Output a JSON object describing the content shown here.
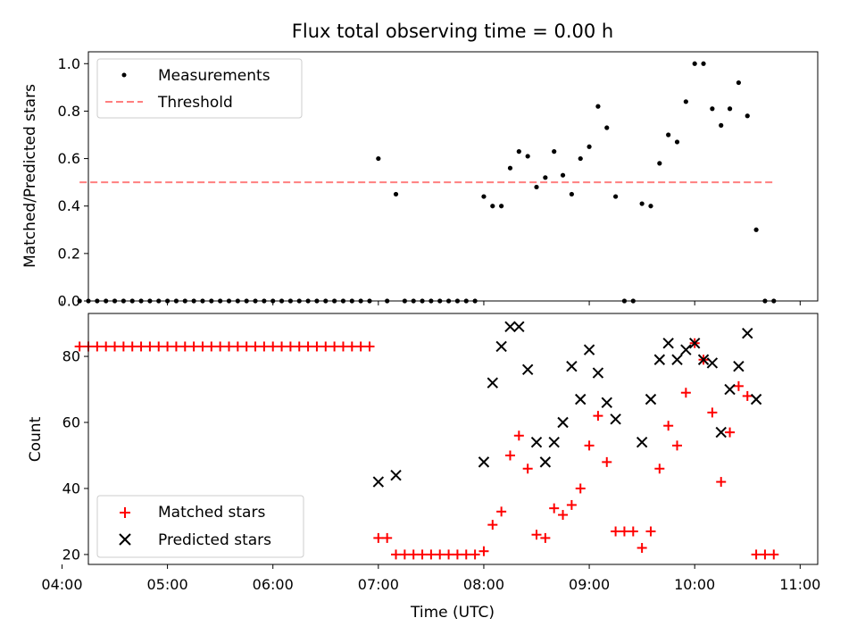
{
  "chart_data": [
    {
      "type": "scatter",
      "title": "Flux total observing time = 0.00 h",
      "xlabel": "",
      "ylabel": "Matched/Predicted stars",
      "ylim": [
        0,
        1.05
      ],
      "yticks": [
        "0.0",
        "0.2",
        "0.4",
        "0.6",
        "0.8",
        "1.0"
      ],
      "xlim": [
        "04:00",
        "11:00"
      ],
      "legend": "upper left",
      "grid": false,
      "threshold": {
        "name": "Threshold",
        "value": 0.5,
        "x_start": "04:10",
        "x_end": "10:45",
        "color": "#ff7f7f"
      },
      "series": [
        {
          "name": "Measurements",
          "color": "#000000",
          "marker": "dot",
          "points": [
            [
              "04:10",
              0
            ],
            [
              "04:15",
              0
            ],
            [
              "04:20",
              0
            ],
            [
              "04:25",
              0
            ],
            [
              "04:30",
              0
            ],
            [
              "04:35",
              0
            ],
            [
              "04:40",
              0
            ],
            [
              "04:45",
              0
            ],
            [
              "04:50",
              0
            ],
            [
              "04:55",
              0
            ],
            [
              "05:00",
              0
            ],
            [
              "05:05",
              0
            ],
            [
              "05:10",
              0
            ],
            [
              "05:15",
              0
            ],
            [
              "05:20",
              0
            ],
            [
              "05:25",
              0
            ],
            [
              "05:30",
              0
            ],
            [
              "05:35",
              0
            ],
            [
              "05:40",
              0
            ],
            [
              "05:45",
              0
            ],
            [
              "05:50",
              0
            ],
            [
              "05:55",
              0
            ],
            [
              "06:00",
              0
            ],
            [
              "06:05",
              0
            ],
            [
              "06:10",
              0
            ],
            [
              "06:15",
              0
            ],
            [
              "06:20",
              0
            ],
            [
              "06:25",
              0
            ],
            [
              "06:30",
              0
            ],
            [
              "06:35",
              0
            ],
            [
              "06:40",
              0
            ],
            [
              "06:45",
              0
            ],
            [
              "06:50",
              0
            ],
            [
              "06:55",
              0
            ],
            [
              "07:00",
              0.6
            ],
            [
              "07:05",
              0
            ],
            [
              "07:10",
              0.45
            ],
            [
              "07:15",
              0
            ],
            [
              "07:20",
              0
            ],
            [
              "07:25",
              0
            ],
            [
              "07:30",
              0
            ],
            [
              "07:35",
              0
            ],
            [
              "07:40",
              0
            ],
            [
              "07:45",
              0
            ],
            [
              "07:50",
              0
            ],
            [
              "07:55",
              0
            ],
            [
              "08:00",
              0.44
            ],
            [
              "08:05",
              0.4
            ],
            [
              "08:10",
              0.4
            ],
            [
              "08:15",
              0.56
            ],
            [
              "08:20",
              0.63
            ],
            [
              "08:25",
              0.61
            ],
            [
              "08:30",
              0.48
            ],
            [
              "08:35",
              0.52
            ],
            [
              "08:40",
              0.63
            ],
            [
              "08:45",
              0.53
            ],
            [
              "08:50",
              0.45
            ],
            [
              "08:55",
              0.6
            ],
            [
              "09:00",
              0.65
            ],
            [
              "09:05",
              0.82
            ],
            [
              "09:10",
              0.73
            ],
            [
              "09:15",
              0.44
            ],
            [
              "09:20",
              0
            ],
            [
              "09:25",
              0
            ],
            [
              "09:30",
              0.41
            ],
            [
              "09:35",
              0.4
            ],
            [
              "09:40",
              0.58
            ],
            [
              "09:45",
              0.7
            ],
            [
              "09:50",
              0.67
            ],
            [
              "09:55",
              0.84
            ],
            [
              "10:00",
              1.0
            ],
            [
              "10:05",
              1.0
            ],
            [
              "10:10",
              0.81
            ],
            [
              "10:15",
              0.74
            ],
            [
              "10:20",
              0.81
            ],
            [
              "10:25",
              0.92
            ],
            [
              "10:30",
              0.78
            ],
            [
              "10:35",
              0.3
            ],
            [
              "10:40",
              0
            ],
            [
              "10:45",
              0
            ]
          ]
        }
      ]
    },
    {
      "type": "scatter",
      "title": "",
      "xlabel": "Time (UTC)",
      "ylabel": "Count",
      "ylim": [
        17,
        93
      ],
      "yticks": [
        "20",
        "40",
        "60",
        "80"
      ],
      "xlim": [
        "04:00",
        "11:00"
      ],
      "xticks": [
        "04:00",
        "05:00",
        "06:00",
        "07:00",
        "08:00",
        "09:00",
        "10:00",
        "11:00"
      ],
      "legend": "lower left",
      "grid": false,
      "series": [
        {
          "name": "Matched stars",
          "color": "#ff0000",
          "marker": "plus",
          "points": [
            [
              "04:10",
              83
            ],
            [
              "04:15",
              83
            ],
            [
              "04:20",
              83
            ],
            [
              "04:25",
              83
            ],
            [
              "04:30",
              83
            ],
            [
              "04:35",
              83
            ],
            [
              "04:40",
              83
            ],
            [
              "04:45",
              83
            ],
            [
              "04:50",
              83
            ],
            [
              "04:55",
              83
            ],
            [
              "05:00",
              83
            ],
            [
              "05:05",
              83
            ],
            [
              "05:10",
              83
            ],
            [
              "05:15",
              83
            ],
            [
              "05:20",
              83
            ],
            [
              "05:25",
              83
            ],
            [
              "05:30",
              83
            ],
            [
              "05:35",
              83
            ],
            [
              "05:40",
              83
            ],
            [
              "05:45",
              83
            ],
            [
              "05:50",
              83
            ],
            [
              "05:55",
              83
            ],
            [
              "06:00",
              83
            ],
            [
              "06:05",
              83
            ],
            [
              "06:10",
              83
            ],
            [
              "06:15",
              83
            ],
            [
              "06:20",
              83
            ],
            [
              "06:25",
              83
            ],
            [
              "06:30",
              83
            ],
            [
              "06:35",
              83
            ],
            [
              "06:40",
              83
            ],
            [
              "06:45",
              83
            ],
            [
              "06:50",
              83
            ],
            [
              "06:55",
              83
            ],
            [
              "07:00",
              25
            ],
            [
              "07:05",
              25
            ],
            [
              "07:10",
              20
            ],
            [
              "07:15",
              20
            ],
            [
              "07:20",
              20
            ],
            [
              "07:25",
              20
            ],
            [
              "07:30",
              20
            ],
            [
              "07:35",
              20
            ],
            [
              "07:40",
              20
            ],
            [
              "07:45",
              20
            ],
            [
              "07:50",
              20
            ],
            [
              "07:55",
              20
            ],
            [
              "08:00",
              21
            ],
            [
              "08:05",
              29
            ],
            [
              "08:10",
              33
            ],
            [
              "08:15",
              50
            ],
            [
              "08:20",
              56
            ],
            [
              "08:25",
              46
            ],
            [
              "08:30",
              26
            ],
            [
              "08:35",
              25
            ],
            [
              "08:40",
              34
            ],
            [
              "08:45",
              32
            ],
            [
              "08:50",
              35
            ],
            [
              "08:55",
              40
            ],
            [
              "09:00",
              53
            ],
            [
              "09:05",
              62
            ],
            [
              "09:10",
              48
            ],
            [
              "09:15",
              27
            ],
            [
              "09:20",
              27
            ],
            [
              "09:25",
              27
            ],
            [
              "09:30",
              22
            ],
            [
              "09:35",
              27
            ],
            [
              "09:40",
              46
            ],
            [
              "09:45",
              59
            ],
            [
              "09:50",
              53
            ],
            [
              "09:55",
              69
            ],
            [
              "10:00",
              84
            ],
            [
              "10:05",
              79
            ],
            [
              "10:10",
              63
            ],
            [
              "10:15",
              42
            ],
            [
              "10:20",
              57
            ],
            [
              "10:25",
              71
            ],
            [
              "10:30",
              68
            ],
            [
              "10:35",
              20
            ],
            [
              "10:40",
              20
            ],
            [
              "10:45",
              20
            ]
          ]
        },
        {
          "name": "Predicted stars",
          "color": "#000000",
          "marker": "x",
          "points": [
            [
              "07:00",
              42
            ],
            [
              "07:10",
              44
            ],
            [
              "08:00",
              48
            ],
            [
              "08:05",
              72
            ],
            [
              "08:10",
              83
            ],
            [
              "08:15",
              89
            ],
            [
              "08:20",
              89
            ],
            [
              "08:25",
              76
            ],
            [
              "08:30",
              54
            ],
            [
              "08:35",
              48
            ],
            [
              "08:40",
              54
            ],
            [
              "08:45",
              60
            ],
            [
              "08:50",
              77
            ],
            [
              "08:55",
              67
            ],
            [
              "09:00",
              82
            ],
            [
              "09:05",
              75
            ],
            [
              "09:10",
              66
            ],
            [
              "09:15",
              61
            ],
            [
              "09:30",
              54
            ],
            [
              "09:35",
              67
            ],
            [
              "09:40",
              79
            ],
            [
              "09:45",
              84
            ],
            [
              "09:50",
              79
            ],
            [
              "09:55",
              82
            ],
            [
              "10:00",
              84
            ],
            [
              "10:05",
              79
            ],
            [
              "10:10",
              78
            ],
            [
              "10:15",
              57
            ],
            [
              "10:20",
              70
            ],
            [
              "10:25",
              77
            ],
            [
              "10:30",
              87
            ],
            [
              "10:35",
              67
            ]
          ]
        }
      ]
    }
  ]
}
